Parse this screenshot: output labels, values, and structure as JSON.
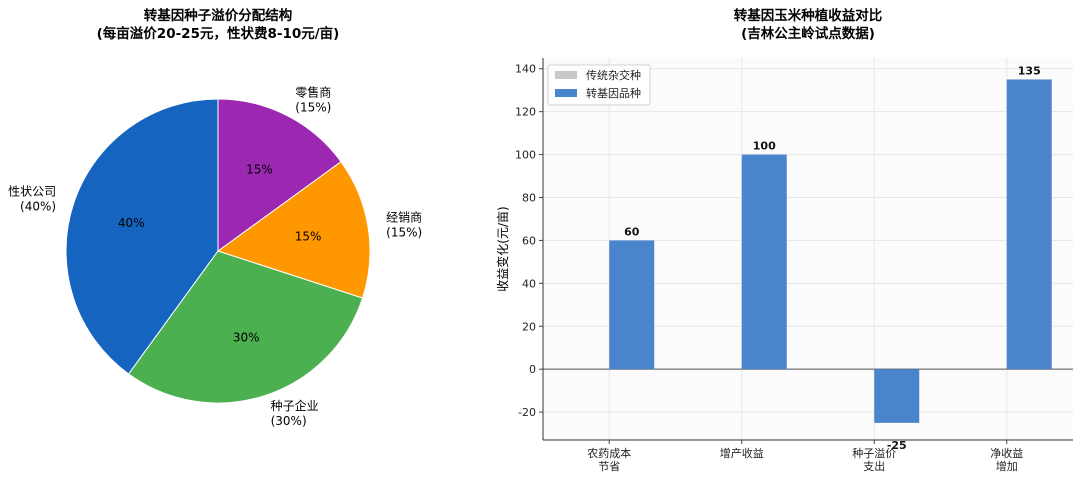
{
  "colors": {
    "pie": [
      "#1565c0",
      "#4caf50",
      "#ff9800",
      "#9c27b0"
    ],
    "bar_traditional": "#c8c8c8",
    "bar_gm": "#4a84cc",
    "plot_bg": "#fbfbfb",
    "grid": "#e6e6e6"
  },
  "chart_data": [
    {
      "type": "pie",
      "title": "转基因种子溢价分配结构",
      "subtitle": "(每亩溢价20-25元，性状费8-10元/亩)",
      "slices": [
        {
          "name": "性状公司",
          "value": 40,
          "label": "性状公司",
          "pct_label": "(40%)",
          "inner_label": "40%"
        },
        {
          "name": "种子企业",
          "value": 30,
          "label": "种子企业",
          "pct_label": "(30%)",
          "inner_label": "30%"
        },
        {
          "name": "经销商",
          "value": 15,
          "label": "经销商",
          "pct_label": "(15%)",
          "inner_label": "15%"
        },
        {
          "name": "零售商",
          "value": 15,
          "label": "零售商",
          "pct_label": "(15%)",
          "inner_label": "15%"
        }
      ]
    },
    {
      "type": "bar",
      "title": "转基因玉米种植收益对比",
      "subtitle": "(吉林公主岭试点数据)",
      "xlabel": "",
      "ylabel": "收益变化(元/亩)",
      "ylim": [
        -33,
        145
      ],
      "yticks": [
        -20,
        0,
        20,
        40,
        60,
        80,
        100,
        120,
        140
      ],
      "grid": true,
      "legend": "top-left",
      "categories": [
        [
          "农药成本",
          "节省"
        ],
        [
          "增产收益"
        ],
        [
          "种子溢价",
          "支出"
        ],
        [
          "净收益",
          "增加"
        ]
      ],
      "series": [
        {
          "name": "传统杂交种",
          "values": [
            0,
            0,
            0,
            0
          ]
        },
        {
          "name": "转基因品种",
          "values": [
            60,
            100,
            -25,
            135
          ]
        }
      ],
      "data_labels": [
        "60",
        "100",
        "-25",
        "135"
      ]
    }
  ]
}
